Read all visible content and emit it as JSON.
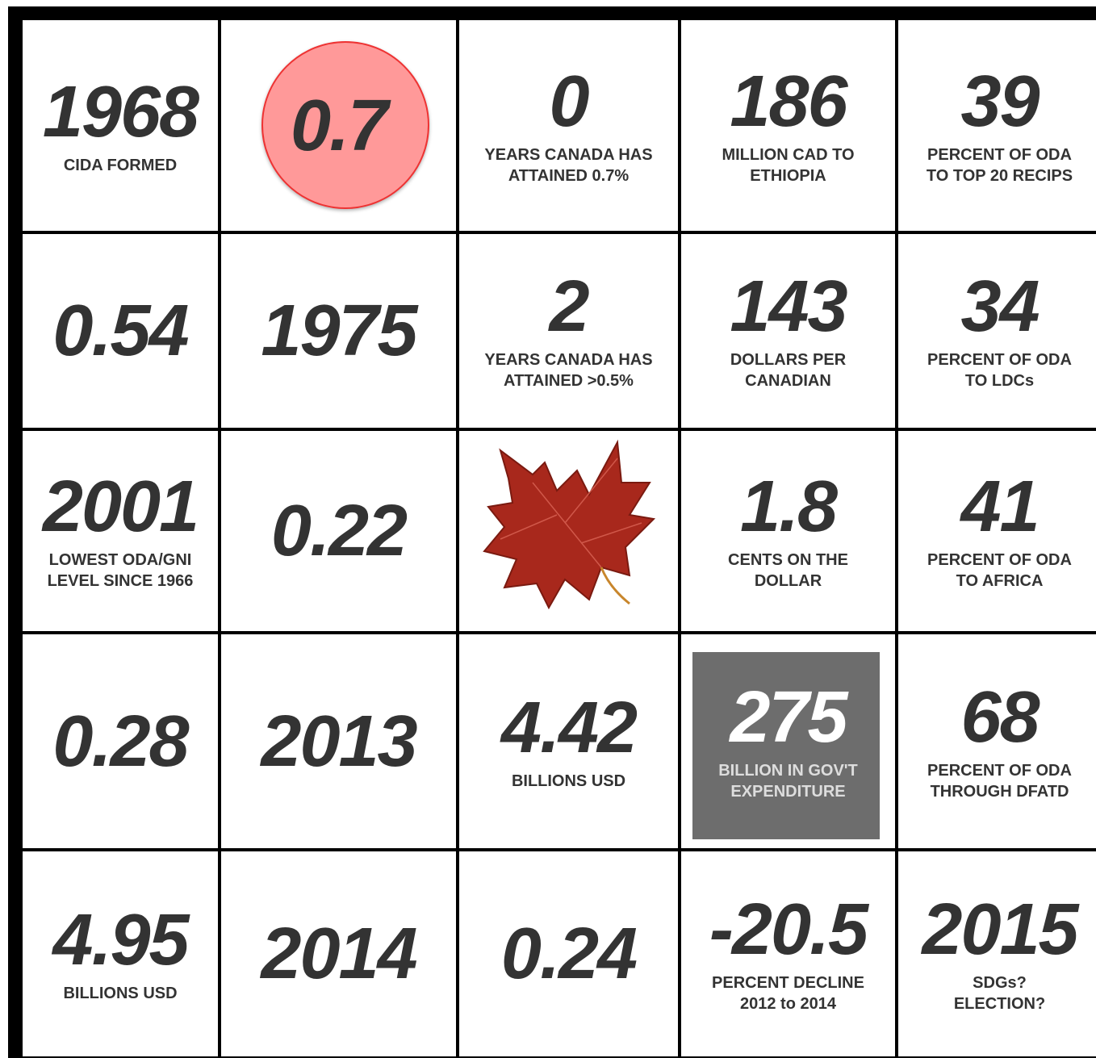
{
  "cells": [
    [
      {
        "number": "1968",
        "label": [
          "CIDA FORMED"
        ]
      },
      {
        "number": "0.7",
        "label": []
      },
      {
        "number": "0",
        "label": [
          "YEARS CANADA HAS",
          "ATTAINED 0.7%"
        ]
      },
      {
        "number": "186",
        "label": [
          "MILLION CAD TO",
          "ETHIOPIA"
        ]
      },
      {
        "number": "39",
        "label": [
          "PERCENT OF ODA",
          "TO TOP 20 RECIPS"
        ]
      }
    ],
    [
      {
        "number": "0.54",
        "label": []
      },
      {
        "number": "1975",
        "label": []
      },
      {
        "number": "2",
        "label": [
          "YEARS CANADA HAS",
          "ATTAINED >0.5%"
        ]
      },
      {
        "number": "143",
        "label": [
          "DOLLARS PER",
          "CANADIAN"
        ]
      },
      {
        "number": "34",
        "label": [
          "PERCENT OF ODA",
          "TO LDCs"
        ]
      }
    ],
    [
      {
        "number": "2001",
        "label": [
          "LOWEST ODA/GNI",
          "LEVEL SINCE 1966"
        ]
      },
      {
        "number": "0.22",
        "label": []
      },
      {
        "number": null,
        "label": []
      },
      {
        "number": "1.8",
        "label": [
          "CENTS ON THE",
          "DOLLAR"
        ]
      },
      {
        "number": "41",
        "label": [
          "PERCENT OF ODA",
          "TO AFRICA"
        ]
      }
    ],
    [
      {
        "number": "0.28",
        "label": []
      },
      {
        "number": "2013",
        "label": []
      },
      {
        "number": "4.42",
        "label": [
          "BILLIONS USD"
        ]
      },
      {
        "number": "275",
        "label": [
          "BILLION IN GOV'T",
          "EXPENDITURE"
        ]
      },
      {
        "number": "68",
        "label": [
          "PERCENT OF ODA",
          "THROUGH DFATD"
        ]
      }
    ],
    [
      {
        "number": "4.95",
        "label": [
          "BILLIONS USD"
        ]
      },
      {
        "number": "2014",
        "label": []
      },
      {
        "number": "0.24",
        "label": []
      },
      {
        "number": "-20.5",
        "label": [
          "PERCENT DECLINE",
          "2012 to 2014"
        ]
      },
      {
        "number": "2015",
        "label": [
          "SDGs?",
          "ELECTION?"
        ]
      }
    ]
  ]
}
